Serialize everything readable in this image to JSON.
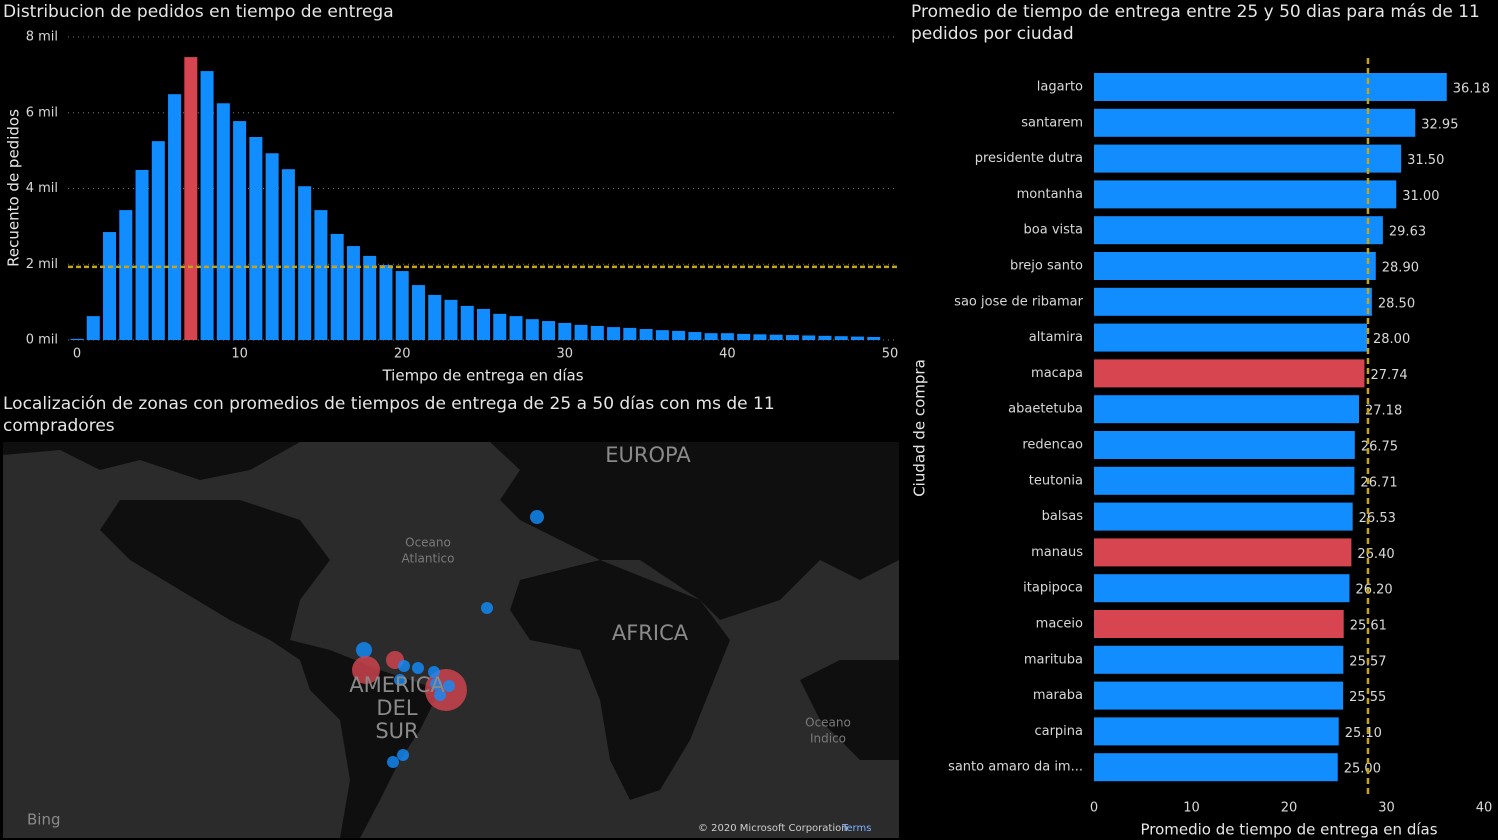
{
  "chart_data": [
    {
      "type": "bar",
      "title": "Distribucion de pedidos en tiempo de entrega",
      "x_label": "Tiempo de entrega en días",
      "y_label": "Recuento de pedidos",
      "x": [
        0,
        1,
        2,
        3,
        4,
        5,
        6,
        7,
        8,
        9,
        10,
        11,
        12,
        13,
        14,
        15,
        16,
        17,
        18,
        19,
        20,
        21,
        22,
        23,
        24,
        25,
        26,
        27,
        28,
        29,
        30,
        31,
        32,
        33,
        34,
        35,
        36,
        37,
        38,
        39,
        40,
        41,
        42,
        43,
        44,
        45,
        46,
        47,
        48,
        49
      ],
      "values": [
        30,
        630,
        2850,
        3430,
        4490,
        5250,
        6490,
        7470,
        7100,
        6250,
        5780,
        5360,
        4930,
        4510,
        4060,
        3430,
        2800,
        2480,
        2220,
        1980,
        1820,
        1450,
        1190,
        1060,
        900,
        820,
        690,
        630,
        550,
        500,
        450,
        400,
        370,
        340,
        320,
        290,
        260,
        240,
        210,
        180,
        180,
        160,
        150,
        140,
        130,
        120,
        110,
        100,
        90,
        80
      ],
      "colors": [
        "#118dff",
        "#118dff",
        "#118dff",
        "#118dff",
        "#118dff",
        "#118dff",
        "#118dff",
        "#d64550",
        "#118dff",
        "#118dff",
        "#118dff",
        "#118dff",
        "#118dff",
        "#118dff",
        "#118dff",
        "#118dff",
        "#118dff",
        "#118dff",
        "#118dff",
        "#118dff",
        "#118dff",
        "#118dff",
        "#118dff",
        "#118dff",
        "#118dff",
        "#118dff",
        "#118dff",
        "#118dff",
        "#118dff",
        "#118dff",
        "#118dff",
        "#118dff",
        "#118dff",
        "#118dff",
        "#118dff",
        "#118dff",
        "#118dff",
        "#118dff",
        "#118dff",
        "#118dff",
        "#118dff",
        "#118dff",
        "#118dff",
        "#118dff",
        "#118dff",
        "#118dff",
        "#118dff",
        "#118dff",
        "#118dff",
        "#118dff"
      ],
      "xlim": [
        0,
        50
      ],
      "xticks": [
        0,
        10,
        20,
        30,
        40,
        50
      ],
      "ylim": [
        0,
        8000
      ],
      "yticks": [
        {
          "value": 0,
          "label": "0 mil"
        },
        {
          "value": 2000,
          "label": "2 mil"
        },
        {
          "value": 4000,
          "label": "4 mil"
        },
        {
          "value": 6000,
          "label": "6 mil"
        },
        {
          "value": 8000,
          "label": "8 mil"
        }
      ],
      "grid": true,
      "reference_line": 1930,
      "reference_color": "#c8a415"
    },
    {
      "type": "hbar",
      "title": [
        "Promedio de tiempo de entrega entre 25 y 50 dias para más de 11",
        "pedidos por ciudad"
      ],
      "x_label": "Promedio de tiempo de entrega en días",
      "y_label": "Ciudad de compra",
      "categories": [
        "lagarto",
        "santarem",
        "presidente dutra",
        "montanha",
        "boa vista",
        "brejo santo",
        "sao jose de ribamar",
        "altamira",
        "macapa",
        "abaetetuba",
        "redencao",
        "teutonia",
        "balsas",
        "manaus",
        "itapipoca",
        "maceio",
        "marituba",
        "maraba",
        "carpina",
        "santo amaro da im..."
      ],
      "values": [
        36.18,
        32.95,
        31.5,
        31,
        29.63,
        28.9,
        28.5,
        28,
        27.74,
        27.18,
        26.75,
        26.71,
        26.53,
        26.4,
        26.2,
        25.61,
        25.57,
        25.55,
        25.1,
        25
      ],
      "value_labels": [
        "36.18",
        "32.95",
        "31.50",
        "31.00",
        "29.63",
        "28.90",
        "28.50",
        "28.00",
        "27.74",
        "27.18",
        "26.75",
        "26.71",
        "26.53",
        "26.40",
        "26.20",
        "25.61",
        "25.57",
        "25.55",
        "25.10",
        "25.00"
      ],
      "colors": [
        "#118dff",
        "#118dff",
        "#118dff",
        "#118dff",
        "#118dff",
        "#118dff",
        "#118dff",
        "#118dff",
        "#d64550",
        "#118dff",
        "#118dff",
        "#118dff",
        "#118dff",
        "#d64550",
        "#118dff",
        "#d64550",
        "#118dff",
        "#118dff",
        "#118dff",
        "#118dff"
      ],
      "xlim": [
        0,
        40
      ],
      "xticks": [
        0,
        10,
        20,
        30,
        40
      ],
      "reference_line": 28.1,
      "reference_color": "#c8a415"
    }
  ],
  "map": {
    "title": [
      "Localización de zonas con promedios de tiempos de entrega de 25 a 50 días con ms de 11",
      "compradores"
    ],
    "labels": {
      "europe": "EUROPA",
      "atlantic": [
        "Oceano",
        "Atlantico"
      ],
      "africa": "AFRICA",
      "south_america": [
        "AMERICA",
        "DEL",
        "SUR"
      ],
      "indian": [
        "Oceano",
        "Indico"
      ]
    },
    "provider": "Bing",
    "attribution": "© 2020 Microsoft Corporation",
    "terms": "Terms"
  }
}
